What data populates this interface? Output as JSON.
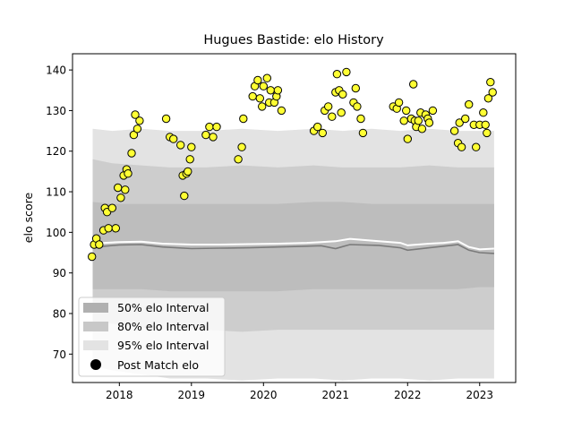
{
  "chart_data": {
    "type": "scatter",
    "title": "Hugues Bastide: elo History",
    "xlabel": "",
    "ylabel": "elo score",
    "xlim": [
      2017.35,
      2023.5
    ],
    "ylim": [
      63,
      144
    ],
    "x_ticks": [
      2018,
      2019,
      2020,
      2021,
      2022,
      2023
    ],
    "x_tick_labels": [
      "2018",
      "2019",
      "2020",
      "2021",
      "2022",
      "2023"
    ],
    "y_ticks": [
      70,
      80,
      90,
      100,
      110,
      120,
      130,
      140
    ],
    "y_tick_labels": [
      "70",
      "80",
      "90",
      "100",
      "110",
      "120",
      "130",
      "140"
    ],
    "grid": false,
    "legend_position": "lower-left",
    "legend": [
      {
        "label": "50% elo Interval",
        "color": "#b0b0b0",
        "kind": "patch"
      },
      {
        "label": "80% elo Interval",
        "color": "#c8c8c8",
        "kind": "patch"
      },
      {
        "label": "95% elo Interval",
        "color": "#e3e3e3",
        "kind": "patch"
      },
      {
        "label": "Post Match elo",
        "color": "#000000",
        "kind": "marker"
      }
    ],
    "colors": {
      "band_50": "#bdbdbd",
      "band_80": "#cdcdcd",
      "band_95": "#e3e3e3",
      "mean_line": "#7a7a7a",
      "median_line": "#ffffff",
      "point_fill": "#ffff33",
      "point_edge": "#000000"
    },
    "bands": {
      "x": [
        2017.63,
        2017.9,
        2018.3,
        2018.7,
        2019.2,
        2019.7,
        2020.2,
        2020.7,
        2021.1,
        2021.5,
        2021.9,
        2022.3,
        2022.7,
        2023.0,
        2023.2
      ],
      "band_95": {
        "lower": [
          67,
          66,
          65,
          64,
          64,
          63.5,
          64,
          64,
          63.5,
          64,
          64,
          63.5,
          64,
          64,
          64
        ],
        "upper": [
          125.5,
          125,
          125.5,
          125,
          125,
          125.5,
          125,
          125.5,
          125,
          125.5,
          125,
          125.5,
          125,
          125,
          125
        ]
      },
      "band_80": {
        "lower": [
          78,
          77.5,
          76.5,
          76,
          76,
          75.5,
          76,
          76,
          76,
          76,
          76,
          76,
          76,
          76,
          76
        ],
        "upper": [
          118,
          117,
          116.5,
          116,
          116,
          116.5,
          116,
          116.5,
          116,
          116,
          116,
          116.5,
          116,
          116,
          116
        ]
      },
      "band_50": {
        "lower": [
          86,
          86,
          86,
          85.5,
          85.5,
          85.5,
          85.5,
          86,
          86,
          86,
          86,
          86,
          86,
          86.5,
          86.5
        ],
        "upper": [
          107.5,
          107,
          107,
          107,
          107,
          107,
          107,
          107.5,
          107.5,
          107,
          107,
          107,
          107,
          107,
          107
        ]
      }
    },
    "mean_line": {
      "x": [
        2017.63,
        2017.8,
        2018.0,
        2018.3,
        2018.6,
        2019.0,
        2019.4,
        2019.8,
        2020.2,
        2020.6,
        2020.8,
        2021.0,
        2021.2,
        2021.6,
        2021.9,
        2022.0,
        2022.3,
        2022.5,
        2022.7,
        2022.85,
        2023.0,
        2023.2
      ],
      "y": [
        96.2,
        96.6,
        96.9,
        97.0,
        96.4,
        96.0,
        96.1,
        96.2,
        96.4,
        96.6,
        96.7,
        96.0,
        97.0,
        96.8,
        96.2,
        95.6,
        96.2,
        96.6,
        97.0,
        95.6,
        95.0,
        94.8
      ]
    },
    "median_line": {
      "x": [
        2017.63,
        2017.8,
        2018.0,
        2018.3,
        2018.6,
        2019.0,
        2019.4,
        2019.8,
        2020.2,
        2020.6,
        2020.8,
        2021.0,
        2021.2,
        2021.6,
        2021.9,
        2022.0,
        2022.3,
        2022.5,
        2022.7,
        2022.85,
        2023.0,
        2023.2
      ],
      "y": [
        97.0,
        97.4,
        97.6,
        97.7,
        97.2,
        97.0,
        97.0,
        97.1,
        97.2,
        97.4,
        97.6,
        97.8,
        98.4,
        97.8,
        97.4,
        96.8,
        97.2,
        97.4,
        97.8,
        96.4,
        95.8,
        96.0
      ]
    },
    "points": {
      "x": [
        2017.62,
        2017.65,
        2017.68,
        2017.72,
        2017.78,
        2017.8,
        2017.83,
        2017.85,
        2017.9,
        2017.95,
        2017.98,
        2018.02,
        2018.06,
        2018.08,
        2018.1,
        2018.12,
        2018.17,
        2018.2,
        2018.22,
        2018.25,
        2018.28,
        2018.65,
        2018.7,
        2018.75,
        2018.85,
        2018.88,
        2018.9,
        2018.93,
        2018.95,
        2018.98,
        2019.0,
        2019.2,
        2019.25,
        2019.3,
        2019.35,
        2019.65,
        2019.7,
        2019.72,
        2019.85,
        2019.88,
        2019.92,
        2019.95,
        2019.98,
        2020.0,
        2020.05,
        2020.08,
        2020.1,
        2020.15,
        2020.18,
        2020.2,
        2020.25,
        2020.7,
        2020.75,
        2020.82,
        2020.85,
        2020.9,
        2020.95,
        2021.0,
        2021.02,
        2021.05,
        2021.08,
        2021.1,
        2021.15,
        2021.25,
        2021.28,
        2021.3,
        2021.35,
        2021.38,
        2021.8,
        2021.85,
        2021.88,
        2021.95,
        2021.98,
        2022.0,
        2022.05,
        2022.08,
        2022.1,
        2022.12,
        2022.15,
        2022.18,
        2022.2,
        2022.25,
        2022.28,
        2022.3,
        2022.35,
        2022.65,
        2022.7,
        2022.72,
        2022.75,
        2022.8,
        2022.85,
        2022.92,
        2022.95,
        2023.0,
        2023.05,
        2023.08,
        2023.1,
        2023.12,
        2023.15,
        2023.18
      ],
      "y": [
        94,
        97,
        98.5,
        97,
        100.5,
        106,
        105,
        101,
        106,
        101,
        111,
        108.5,
        114,
        110.5,
        115.5,
        114.5,
        119.5,
        124,
        129,
        125.5,
        127.5,
        128,
        123.5,
        123,
        121.5,
        114,
        109,
        114.5,
        115,
        118,
        121,
        124,
        126,
        123.5,
        126,
        118,
        121,
        128,
        133.5,
        136,
        137.5,
        133,
        131,
        136,
        138,
        132,
        135,
        132,
        133.5,
        135,
        130,
        125,
        126,
        124.5,
        130,
        131,
        128.5,
        134.5,
        139,
        135,
        129.5,
        134,
        139.5,
        132,
        135.5,
        131,
        128,
        124.5,
        131,
        130.5,
        132,
        127.5,
        130,
        123,
        128,
        136.5,
        127.5,
        126,
        127.5,
        129.5,
        125.5,
        129,
        128,
        127,
        130,
        125,
        122,
        127,
        121,
        128,
        131.5,
        126.5,
        121,
        126.5,
        129.5,
        126.5,
        124.5,
        133,
        137,
        134.5
      ]
    }
  }
}
